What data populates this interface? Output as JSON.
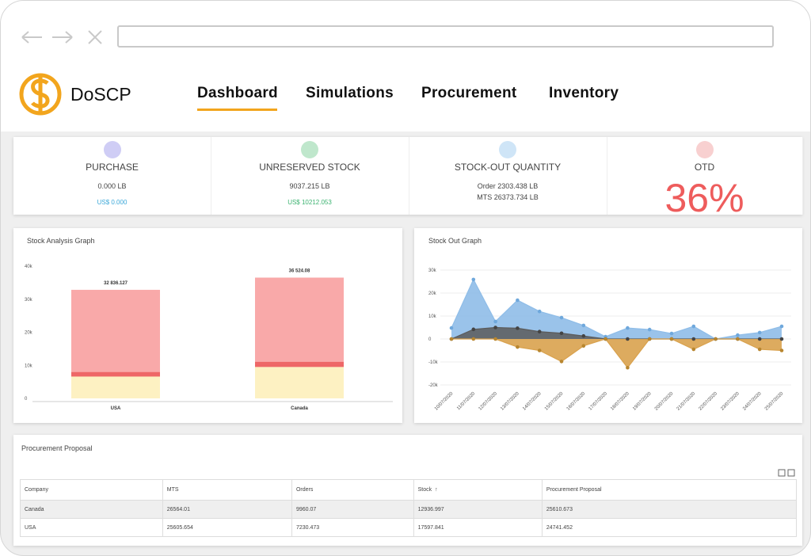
{
  "nav": {
    "brand": "DoSCP",
    "items": [
      "Dashboard",
      "Simulations",
      "Procurement",
      "Inventory"
    ]
  },
  "kpis": [
    {
      "label": "PURCHASE",
      "lines": [
        "0.000 LB"
      ],
      "sub": "US$ 0.000"
    },
    {
      "label": "UNRESERVED STOCK",
      "lines": [
        "9037.215 LB"
      ],
      "sub": "US$ 10212.053"
    },
    {
      "label": "STOCK-OUT QUANTITY",
      "lines": [
        "Order 2303.438 LB",
        "MTS 26373.734 LB"
      ]
    },
    {
      "label": "OTD",
      "big": "36%"
    }
  ],
  "stock_analysis": {
    "type": "bar",
    "title": "Stock Analysis Graph",
    "categories": [
      "USA",
      "Canada"
    ],
    "series": [
      {
        "color": "#fdf1c2",
        "values": [
          6600,
          9500
        ]
      },
      {
        "color": "#ee6767",
        "values": [
          1400,
          1600
        ]
      },
      {
        "color": "#f9a9a9",
        "values": [
          24836.127,
          25424.08
        ]
      }
    ],
    "totals": [
      32836.127,
      36524.08
    ],
    "total_labels": [
      "32 836.127",
      "36 524.08"
    ],
    "ylim": [
      0,
      40000
    ],
    "yticks": [
      0,
      {
        "value": 10000,
        "label": "10k"
      },
      {
        "value": 20000,
        "label": "20k"
      },
      {
        "value": 30000,
        "label": "30k"
      },
      {
        "value": 40000,
        "label": "40k"
      }
    ]
  },
  "stock_out": {
    "type": "area",
    "title": "Stock Out Graph",
    "categories": [
      "10/07/2020",
      "11/07/2020",
      "12/07/2020",
      "13/07/2020",
      "14/07/2020",
      "15/07/2020",
      "16/07/2020",
      "17/07/2020",
      "18/07/2020",
      "19/07/2020",
      "20/07/2020",
      "21/07/2020",
      "22/07/2020",
      "23/07/2020",
      "24/07/2020",
      "25/07/2020"
    ],
    "series": [
      {
        "color": "#8fbde8",
        "values": [
          4800,
          25900,
          7600,
          16900,
          12000,
          9300,
          5900,
          1000,
          4800,
          4100,
          2400,
          5500,
          0,
          1700,
          2800,
          5500
        ]
      },
      {
        "color": "#5b5b5b",
        "values": [
          0,
          4200,
          5000,
          4700,
          3200,
          2500,
          1300,
          0,
          0,
          0,
          0,
          0,
          0,
          0,
          0,
          0
        ]
      },
      {
        "color": "#d9a24e",
        "values": [
          0,
          0,
          0,
          -3500,
          -5000,
          -9800,
          -3000,
          0,
          -12500,
          0,
          0,
          -4500,
          0,
          0,
          -4500,
          -5000
        ]
      }
    ],
    "ylim": [
      -20000,
      30000
    ],
    "yticks": [
      {
        "value": -20000,
        "label": "-20k"
      },
      {
        "value": -10000,
        "label": "-10k"
      },
      0,
      {
        "value": 10000,
        "label": "10k"
      },
      {
        "value": 20000,
        "label": "20k"
      },
      {
        "value": 30000,
        "label": "30k"
      }
    ]
  },
  "procurement": {
    "title": "Procurement Proposal",
    "columns": [
      "Company",
      "MTS",
      "Orders",
      "Stock",
      "Procurement Proposal"
    ],
    "rows": [
      [
        "Canada",
        "26564.01",
        "9960.07",
        "12936.997",
        "25610.673"
      ],
      [
        "USA",
        "25605.654",
        "7230.473",
        "17597.841",
        "24741.452"
      ]
    ]
  }
}
